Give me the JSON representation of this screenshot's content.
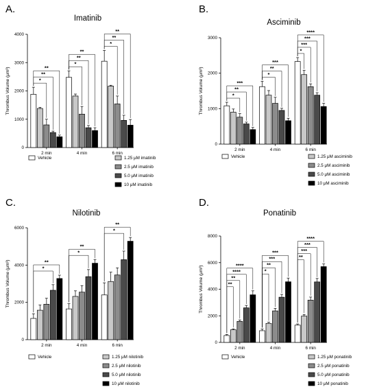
{
  "chart_data": [
    {
      "panel": "A.",
      "type": "bar",
      "title": "Imatinib",
      "ylabel": "Thrombus Volume (μm³)",
      "ylim": [
        0,
        4000
      ],
      "yticks": [
        "0",
        "1000",
        "2000",
        "3000",
        "4000"
      ],
      "categories": [
        "2 min",
        "4 min",
        "6 min"
      ],
      "series": [
        {
          "name": "Vehicle",
          "color": "#ffffff",
          "values": [
            1880,
            2480,
            3050
          ],
          "errors": [
            250,
            230,
            380
          ]
        },
        {
          "name": "1.25 μM imatinib",
          "color": "#c8c8c8",
          "values": [
            1380,
            1820,
            2170
          ],
          "errors": [
            40,
            70,
            30
          ]
        },
        {
          "name": "2.5 μM imatinib",
          "color": "#8c8c8c",
          "values": [
            800,
            1180,
            1540
          ],
          "errors": [
            200,
            270,
            280
          ]
        },
        {
          "name": "5.0 μM imatinib",
          "color": "#4a4a4a",
          "values": [
            530,
            700,
            960
          ],
          "errors": [
            50,
            80,
            180
          ]
        },
        {
          "name": "10 μM imatinib",
          "color": "#000000",
          "values": [
            380,
            600,
            790
          ],
          "errors": [
            60,
            100,
            200
          ]
        }
      ],
      "significance": [
        [
          "*",
          "**",
          "**"
        ],
        [
          "*",
          "**",
          "**"
        ],
        [
          "*",
          "**",
          "**"
        ]
      ]
    },
    {
      "panel": "B.",
      "type": "bar",
      "title": "Asciminib",
      "ylabel": "Thrombus Volume (μm³)",
      "ylim": [
        0,
        3000
      ],
      "yticks": [
        "0",
        "1000",
        "2000",
        "3000"
      ],
      "categories": [
        "2 min",
        "4 min",
        "6 min"
      ],
      "series": [
        {
          "name": "Vehicle",
          "color": "#ffffff",
          "values": [
            1080,
            1620,
            2330
          ],
          "errors": [
            100,
            150,
            110
          ]
        },
        {
          "name": "1.25 μM asciminib",
          "color": "#c8c8c8",
          "values": [
            900,
            1380,
            1960
          ],
          "errors": [
            90,
            130,
            120
          ]
        },
        {
          "name": "2.5 μM asciminib",
          "color": "#8c8c8c",
          "values": [
            760,
            1150,
            1620
          ],
          "errors": [
            100,
            170,
            80
          ]
        },
        {
          "name": "5.0 μM asciminib",
          "color": "#4a4a4a",
          "values": [
            570,
            950,
            1380
          ],
          "errors": [
            50,
            60,
            70
          ]
        },
        {
          "name": "10 μM asciminib",
          "color": "#000000",
          "values": [
            410,
            660,
            1060
          ],
          "errors": [
            60,
            70,
            90
          ]
        }
      ],
      "significance": [
        [
          "*",
          "**",
          "***"
        ],
        [
          "*",
          "**",
          "***"
        ],
        [
          "*",
          "***",
          "***",
          "****"
        ]
      ]
    },
    {
      "panel": "C.",
      "type": "bar",
      "title": "Nilotinib",
      "ylabel": "Thrombus Volume (μm³)",
      "ylim": [
        0,
        6000
      ],
      "yticks": [
        "0",
        "2000",
        "4000",
        "6000"
      ],
      "categories": [
        "2 min",
        "4 min",
        "6 min"
      ],
      "series": [
        {
          "name": "Vehicle",
          "color": "#ffffff",
          "values": [
            1140,
            1650,
            2400
          ],
          "errors": [
            250,
            280,
            650
          ]
        },
        {
          "name": "1.25 μM nilotinib",
          "color": "#c8c8c8",
          "values": [
            1580,
            2320,
            3120
          ],
          "errors": [
            280,
            300,
            500
          ]
        },
        {
          "name": "2.5 μM nilotinib",
          "color": "#8c8c8c",
          "values": [
            1900,
            2550,
            3470
          ],
          "errors": [
            320,
            350,
            380
          ]
        },
        {
          "name": "5.0 μM nilotinib",
          "color": "#4a4a4a",
          "values": [
            2650,
            3380,
            4290
          ],
          "errors": [
            300,
            380,
            460
          ]
        },
        {
          "name": "10 μM nilotinib",
          "color": "#000000",
          "values": [
            3280,
            4100,
            5280
          ],
          "errors": [
            180,
            200,
            200
          ]
        }
      ],
      "significance": [
        [
          "*",
          "**"
        ],
        [
          "*",
          "**"
        ],
        [
          "*",
          "**"
        ]
      ]
    },
    {
      "panel": "D.",
      "type": "bar",
      "title": "Ponatinib",
      "ylabel": "Thrombus Volume (μm³)",
      "ylim": [
        0,
        8000
      ],
      "yticks": [
        "0",
        "2000",
        "4000",
        "6000",
        "8000"
      ],
      "categories": [
        "2 min",
        "4 min",
        "6 min"
      ],
      "series": [
        {
          "name": "Vehicle",
          "color": "#ffffff",
          "values": [
            520,
            880,
            1300
          ],
          "errors": [
            80,
            130,
            90
          ]
        },
        {
          "name": "1.25 μM ponatinib",
          "color": "#c8c8c8",
          "values": [
            950,
            1430,
            1980
          ],
          "errors": [
            70,
            90,
            120
          ]
        },
        {
          "name": "2.5 μM ponatinib",
          "color": "#8c8c8c",
          "values": [
            1580,
            2370,
            3180
          ],
          "errors": [
            110,
            190,
            230
          ]
        },
        {
          "name": "5.0 μM ponatinib",
          "color": "#4a4a4a",
          "values": [
            2600,
            3400,
            4550
          ],
          "errors": [
            180,
            210,
            260
          ]
        },
        {
          "name": "10 μM ponatinib",
          "color": "#000000",
          "values": [
            3580,
            4560,
            5700
          ],
          "errors": [
            300,
            280,
            200
          ]
        }
      ],
      "significance": [
        [
          "**",
          "**",
          "****",
          "****"
        ],
        [
          "*",
          "**",
          "***",
          "***"
        ],
        [
          "**",
          "***",
          "***",
          "****"
        ]
      ]
    }
  ]
}
